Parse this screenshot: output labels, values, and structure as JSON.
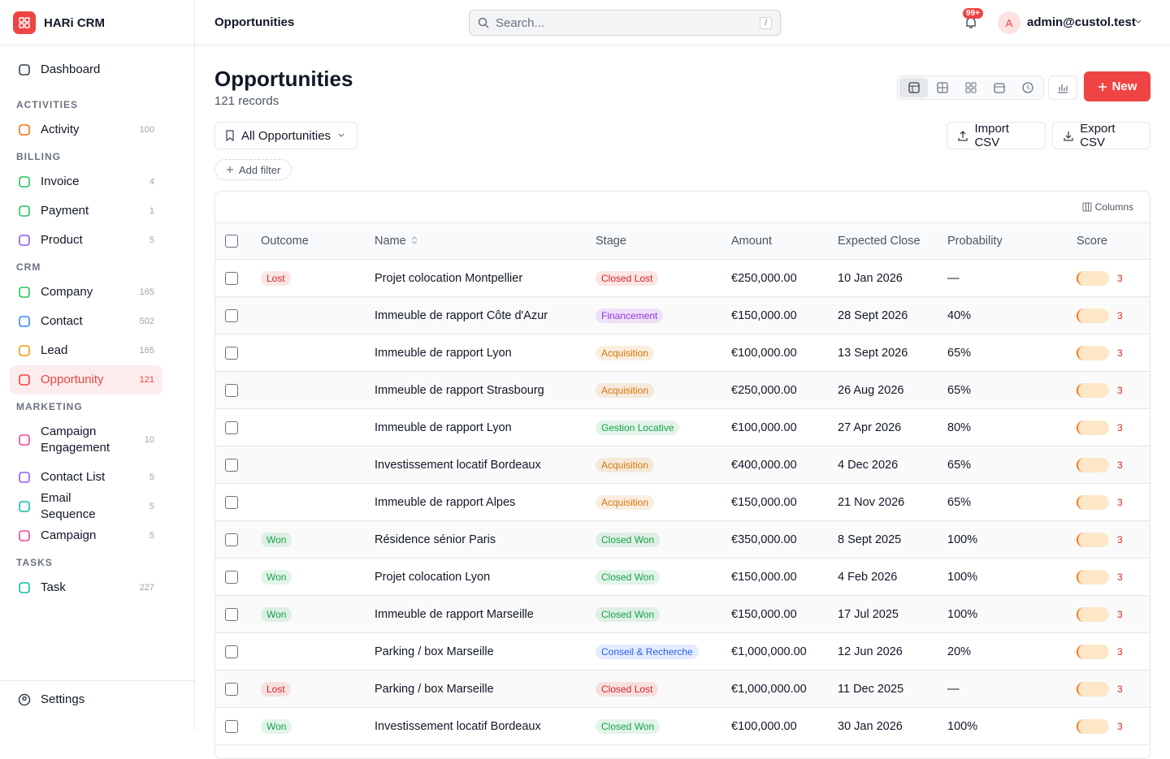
{
  "app": {
    "name": "HARi CRM"
  },
  "header": {
    "title": "Opportunities",
    "search_placeholder": "Search...",
    "search_shortcut": "/",
    "notifications": "99+",
    "avatar": "A",
    "user": "admin@custol.test"
  },
  "sidebar": {
    "dashboard": "Dashboard",
    "sections": [
      {
        "label": "ACTIVITIES",
        "items": [
          {
            "label": "Activity",
            "count": 100,
            "color": "#f97316"
          }
        ]
      },
      {
        "label": "BILLING",
        "items": [
          {
            "label": "Invoice",
            "count": 4,
            "color": "#22c55e"
          },
          {
            "label": "Payment",
            "count": 1,
            "color": "#22c55e"
          },
          {
            "label": "Product",
            "count": 5,
            "color": "#8b5cf6"
          }
        ]
      },
      {
        "label": "CRM",
        "items": [
          {
            "label": "Company",
            "count": 165,
            "color": "#22c55e"
          },
          {
            "label": "Contact",
            "count": 502,
            "color": "#3b82f6"
          },
          {
            "label": "Lead",
            "count": 165,
            "color": "#f59e0b"
          },
          {
            "label": "Opportunity",
            "count": 121,
            "color": "#ef4444",
            "active": true
          }
        ]
      },
      {
        "label": "MARKETING",
        "items": [
          {
            "label": "Campaign Engagement",
            "count": 10,
            "color": "#ec4899"
          },
          {
            "label": "Contact List",
            "count": 5,
            "color": "#8b5cf6"
          },
          {
            "label": "Email Sequence",
            "count": 5,
            "color": "#14b8a6"
          },
          {
            "label": "Campaign",
            "count": 5,
            "color": "#ec4899"
          }
        ]
      },
      {
        "label": "TASKS",
        "items": [
          {
            "label": "Task",
            "count": 227,
            "color": "#14b8a6"
          }
        ]
      }
    ],
    "settings": "Settings"
  },
  "page": {
    "title": "Opportunities",
    "subtitle": "121 records",
    "view_button": "All Opportunities",
    "add_filter": "Add filter",
    "import": "Import CSV",
    "export": "Export CSV",
    "new": "New",
    "columns_button": "Columns"
  },
  "table": {
    "columns": [
      "Outcome",
      "Name",
      "Stage",
      "Amount",
      "Expected Close",
      "Probability",
      "Score"
    ],
    "rows": [
      {
        "outcome": "Lost",
        "name": "Projet colocation Montpellier",
        "stage": "Closed Lost",
        "stage_color": "#dc2626",
        "amount": "€250,000.00",
        "close": "10 Jan 2026",
        "probability": "—",
        "score": 3
      },
      {
        "outcome": null,
        "name": "Immeuble de rapport Côte d'Azur",
        "stage": "Financement",
        "stage_color": "#9333ea",
        "amount": "€150,000.00",
        "close": "28 Sept 2026",
        "probability": "40%",
        "score": 3
      },
      {
        "outcome": null,
        "name": "Immeuble de rapport Lyon",
        "stage": "Acquisition",
        "stage_color": "#d97706",
        "amount": "€100,000.00",
        "close": "13 Sept 2026",
        "probability": "65%",
        "score": 3
      },
      {
        "outcome": null,
        "name": "Immeuble de rapport Strasbourg",
        "stage": "Acquisition",
        "stage_color": "#d97706",
        "amount": "€250,000.00",
        "close": "26 Aug 2026",
        "probability": "65%",
        "score": 3
      },
      {
        "outcome": null,
        "name": "Immeuble de rapport Lyon",
        "stage": "Gestion Locative",
        "stage_color": "#16a34a",
        "amount": "€100,000.00",
        "close": "27 Apr 2026",
        "probability": "80%",
        "score": 3
      },
      {
        "outcome": null,
        "name": "Investissement locatif Bordeaux",
        "stage": "Acquisition",
        "stage_color": "#d97706",
        "amount": "€400,000.00",
        "close": "4 Dec 2026",
        "probability": "65%",
        "score": 3
      },
      {
        "outcome": null,
        "name": "Immeuble de rapport Alpes",
        "stage": "Acquisition",
        "stage_color": "#d97706",
        "amount": "€150,000.00",
        "close": "21 Nov 2026",
        "probability": "65%",
        "score": 3
      },
      {
        "outcome": "Won",
        "name": "Résidence sénior Paris",
        "stage": "Closed Won",
        "stage_color": "#16a34a",
        "amount": "€350,000.00",
        "close": "8 Sept 2025",
        "probability": "100%",
        "score": 3
      },
      {
        "outcome": "Won",
        "name": "Projet colocation Lyon",
        "stage": "Closed Won",
        "stage_color": "#16a34a",
        "amount": "€150,000.00",
        "close": "4 Feb 2026",
        "probability": "100%",
        "score": 3
      },
      {
        "outcome": "Won",
        "name": "Immeuble de rapport Marseille",
        "stage": "Closed Won",
        "stage_color": "#16a34a",
        "amount": "€150,000.00",
        "close": "17 Jul 2025",
        "probability": "100%",
        "score": 3
      },
      {
        "outcome": null,
        "name": "Parking / box Marseille",
        "stage": "Conseil & Recherche",
        "stage_color": "#2563eb",
        "amount": "€1,000,000.00",
        "close": "12 Jun 2026",
        "probability": "20%",
        "score": 3
      },
      {
        "outcome": "Lost",
        "name": "Parking / box Marseille",
        "stage": "Closed Lost",
        "stage_color": "#dc2626",
        "amount": "€1,000,000.00",
        "close": "11 Dec 2025",
        "probability": "—",
        "score": 3
      },
      {
        "outcome": "Won",
        "name": "Investissement locatif Bordeaux",
        "stage": "Closed Won",
        "stage_color": "#16a34a",
        "amount": "€100,000.00",
        "close": "30 Jan 2026",
        "probability": "100%",
        "score": 3
      }
    ]
  }
}
